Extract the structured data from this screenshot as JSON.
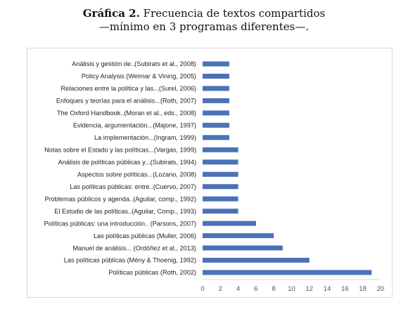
{
  "title": {
    "prefix": "Gráfica 2.",
    "line1": "Frecuencia de textos compartidos",
    "line2": "—mínimo en 3 programas diferentes—."
  },
  "chart_data": {
    "type": "bar",
    "orientation": "horizontal",
    "categories": [
      "Análisis y gestión de..(Subirats et al., 2008)",
      "Policy Analysis (Weimar & Vining, 2005)",
      "Relaciones entre la política y las...(Surel, 2006)",
      "Enfoques y teorías para el análisis...(Roth, 2007)",
      "The Oxford Handbook..(Moran et al., eds., 2008)",
      "Evidencia, argumentación...(Majone, 1997)",
      "La implementación...(Ingram, 1999)",
      "Notas sobre el Estado y las políticas...(Vargas, 1999)",
      "Análisis de políticas públicas y...(Subirats, 1994)",
      "Aspectos sobre políticas...(Lozano, 2008)",
      "Las políticas públicas: entre..(Cuervo, 2007)",
      "Problemas públicos y agenda..(Aguilar, comp., 1992)",
      "El Estudio de las políticas..(Aguilar, Comp., 1993)",
      "Políticas públicas: una introducción.. (Parsons, 2007)",
      "Las políticas públicas (Muller, 2006)",
      "Manuel de análisis... (Ordóñez et al., 2013)",
      "Las políticas públicas (Mény & Thoenig, 1992)",
      "Políticas públicas (Roth, 2002)"
    ],
    "values": [
      3,
      3,
      3,
      3,
      3,
      3,
      3,
      4,
      4,
      4,
      4,
      4,
      4,
      6,
      8,
      9,
      12,
      19
    ],
    "xlim": [
      0,
      20
    ],
    "xticks": [
      "0",
      "2",
      "4",
      "6",
      "8",
      "10",
      "12",
      "14",
      "16",
      "18",
      "20"
    ],
    "bar_color": "#4a72b8",
    "grid": false
  }
}
